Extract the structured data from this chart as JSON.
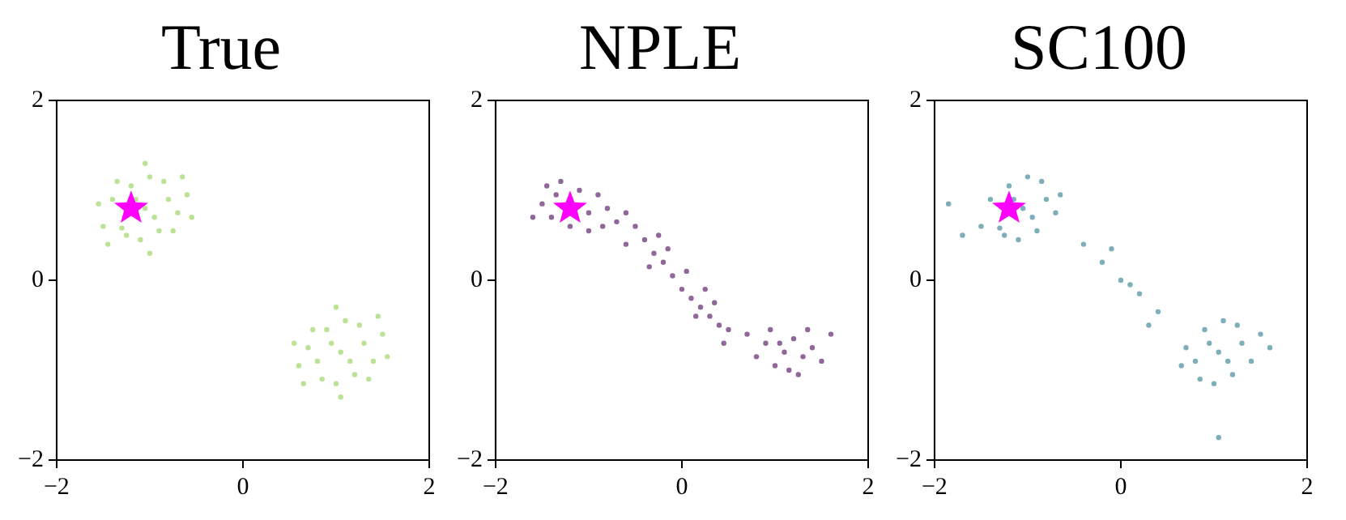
{
  "chart_data": [
    {
      "type": "scatter",
      "title": "True",
      "xlim": [
        -2,
        2
      ],
      "ylim": [
        -2,
        2
      ],
      "xticks": [
        -2,
        0,
        2
      ],
      "yticks": [
        -2,
        0,
        2
      ],
      "series": [
        {
          "color": "#8fd14f",
          "marker": "circle",
          "x": [
            -1.05,
            -0.8,
            -1.3,
            -0.9,
            -1.2,
            -0.7,
            -1.4,
            -1.0,
            -1.1,
            -0.6,
            -1.5,
            -0.85,
            -1.25,
            -0.95,
            -1.15,
            -0.75,
            -1.35,
            -0.55,
            -1.55,
            -1.0,
            -1.05,
            -0.65,
            -1.45,
            1.05,
            0.8,
            1.3,
            0.9,
            1.2,
            0.7,
            1.4,
            1.0,
            1.1,
            0.6,
            1.5,
            0.85,
            1.25,
            0.95,
            1.15,
            0.75,
            1.35,
            0.55,
            1.55,
            1.0,
            1.05,
            0.65,
            1.45
          ],
          "values": [
            0.8,
            0.9,
            0.58,
            0.55,
            1.05,
            0.75,
            0.9,
            1.15,
            0.45,
            0.95,
            0.6,
            1.1,
            0.5,
            0.7,
            0.9,
            0.55,
            1.1,
            0.7,
            0.85,
            0.3,
            1.3,
            1.15,
            0.4,
            -0.8,
            -0.9,
            -0.7,
            -0.55,
            -1.05,
            -0.75,
            -0.9,
            -1.15,
            -0.45,
            -0.95,
            -0.6,
            -1.1,
            -0.5,
            -0.7,
            -0.9,
            -0.55,
            -1.1,
            -0.7,
            -0.85,
            -0.3,
            -1.3,
            -1.15,
            -0.4
          ]
        },
        {
          "color": "#ff00ff",
          "marker": "star",
          "x": [
            -1.2
          ],
          "values": [
            0.8
          ]
        }
      ]
    },
    {
      "type": "scatter",
      "title": "NPLE",
      "xlim": [
        -2,
        2
      ],
      "ylim": [
        -2,
        2
      ],
      "xticks": [
        -2,
        0,
        2
      ],
      "yticks": [
        -2,
        0,
        2
      ],
      "series": [
        {
          "color": "#440154",
          "marker": "circle",
          "x": [
            -1.45,
            -1.0,
            -0.8,
            -1.35,
            -1.1,
            -0.9,
            -1.4,
            -1.2,
            -0.7,
            -1.5,
            -1.0,
            -0.6,
            -1.3,
            -0.85,
            -1.6,
            -0.5,
            -0.4,
            -0.3,
            -0.2,
            -0.1,
            0.0,
            0.1,
            0.2,
            0.3,
            0.4,
            0.5,
            -0.35,
            -0.15,
            0.05,
            0.15,
            0.35,
            -0.6,
            0.25,
            -0.25,
            0.45,
            0.7,
            0.9,
            1.1,
            1.3,
            1.0,
            1.2,
            1.4,
            0.8,
            1.15,
            1.5,
            0.95,
            1.25,
            1.6,
            1.05,
            1.35
          ],
          "values": [
            1.05,
            0.75,
            0.8,
            0.95,
            1.0,
            0.95,
            0.7,
            0.6,
            0.65,
            0.85,
            0.55,
            0.75,
            1.1,
            0.6,
            0.7,
            0.6,
            0.45,
            0.3,
            0.2,
            0.05,
            -0.1,
            -0.2,
            -0.3,
            -0.4,
            -0.5,
            -0.55,
            0.15,
            0.35,
            0.1,
            -0.4,
            -0.25,
            0.4,
            -0.1,
            0.5,
            -0.7,
            -0.6,
            -0.7,
            -0.8,
            -0.85,
            -0.95,
            -0.65,
            -0.75,
            -0.85,
            -1.0,
            -0.9,
            -0.55,
            -1.05,
            -0.6,
            -0.7,
            -0.55
          ]
        },
        {
          "color": "#ff00ff",
          "marker": "star",
          "x": [
            -1.2
          ],
          "values": [
            0.8
          ]
        }
      ]
    },
    {
      "type": "scatter",
      "title": "SC100",
      "xlim": [
        -2,
        2
      ],
      "ylim": [
        -2,
        2
      ],
      "xticks": [
        -2,
        0,
        2
      ],
      "yticks": [
        -2,
        0,
        2
      ],
      "series": [
        {
          "color": "#2a788e",
          "marker": "circle",
          "x": [
            -1.05,
            -0.8,
            -1.3,
            -0.9,
            -1.2,
            -0.7,
            -1.4,
            -1.0,
            -1.1,
            -0.65,
            -1.5,
            -0.85,
            -1.25,
            -0.95,
            -1.15,
            -1.7,
            -1.85,
            -0.4,
            -0.2,
            0.0,
            0.2,
            0.4,
            -0.1,
            0.1,
            0.3,
            1.05,
            0.8,
            1.3,
            0.9,
            1.2,
            0.7,
            1.4,
            1.0,
            1.1,
            0.65,
            1.5,
            0.85,
            1.25,
            0.95,
            1.15,
            1.6,
            1.05
          ],
          "values": [
            0.8,
            0.9,
            0.58,
            0.55,
            1.05,
            0.75,
            0.9,
            1.15,
            0.45,
            0.95,
            0.6,
            1.1,
            0.5,
            0.7,
            0.9,
            0.5,
            0.85,
            0.4,
            0.2,
            0.0,
            -0.15,
            -0.35,
            0.35,
            -0.05,
            -0.5,
            -0.8,
            -0.9,
            -0.7,
            -0.55,
            -1.05,
            -0.75,
            -0.9,
            -1.15,
            -0.45,
            -0.95,
            -0.6,
            -1.1,
            -0.5,
            -0.7,
            -0.9,
            -0.75,
            -1.75
          ]
        },
        {
          "color": "#ff00ff",
          "marker": "star",
          "x": [
            -1.2
          ],
          "values": [
            0.8
          ]
        }
      ]
    }
  ]
}
